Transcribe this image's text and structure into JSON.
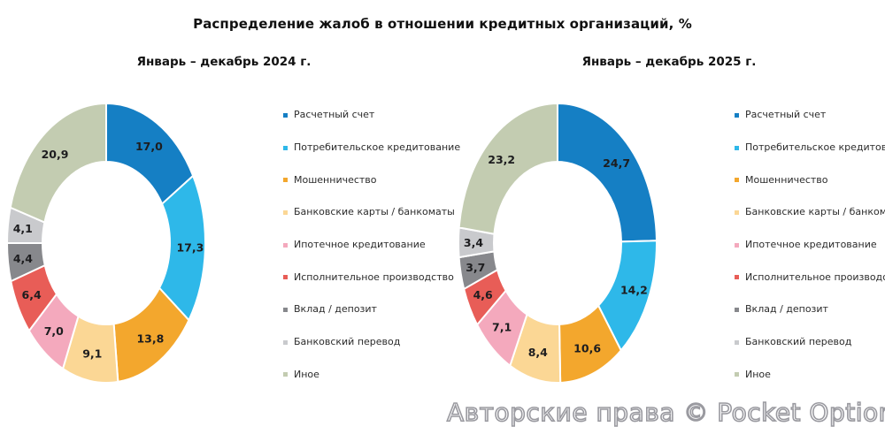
{
  "title": "Распределение жалоб в отношении кредитных организаций, %",
  "watermark": "Авторские права © Pocket Option",
  "legend": {
    "items": [
      {
        "label": "Расчетный счет",
        "color": "#157fc4"
      },
      {
        "label": "Потребительское кредитование",
        "color": "#2eb8e9"
      },
      {
        "label": "Мошенничество",
        "color": "#f3a72d"
      },
      {
        "label": "Банковские карты / банкоматы",
        "color": "#fbd795"
      },
      {
        "label": "Ипотечное кредитование",
        "color": "#f4a9bd"
      },
      {
        "label": "Исполнительное производство",
        "color": "#e85d57"
      },
      {
        "label": "Вклад / депозит",
        "color": "#87888c"
      },
      {
        "label": "Банковский перевод",
        "color": "#c9cacd"
      },
      {
        "label": "Иное",
        "color": "#c3ccb1"
      }
    ]
  },
  "chart_data": [
    {
      "type": "pie",
      "variant": "donut",
      "title": "Январь – декабрь 2024 г.",
      "categories": [
        "Расчетный счет",
        "Потребительское кредитование",
        "Мошенничество",
        "Банковские карты / банкоматы",
        "Ипотечное кредитование",
        "Исполнительное производство",
        "Вклад / депозит",
        "Банковский перевод",
        "Иное"
      ],
      "values": [
        17.0,
        17.3,
        13.8,
        9.1,
        7.0,
        6.4,
        4.4,
        4.1,
        20.9
      ],
      "value_labels": [
        "17,0",
        "17,3",
        "13,8",
        "9,1",
        "7,0",
        "6,4",
        "4,4",
        "4,1",
        "20,9"
      ],
      "colors": [
        "#157fc4",
        "#2eb8e9",
        "#f3a72d",
        "#fbd795",
        "#f4a9bd",
        "#e85d57",
        "#87888c",
        "#c9cacd",
        "#c3ccb1"
      ],
      "start_angle_deg": 0,
      "direction": "clockwise",
      "legend_position": "right"
    },
    {
      "type": "pie",
      "variant": "donut",
      "title": "Январь – декабрь 2025 г.",
      "categories": [
        "Расчетный счет",
        "Потребительское кредитование",
        "Мошенничество",
        "Банковские карты / банкоматы",
        "Ипотечное кредитование",
        "Исполнительное производство",
        "Вклад / депозит",
        "Банковский перевод",
        "Иное"
      ],
      "values": [
        24.7,
        14.2,
        10.6,
        8.4,
        7.1,
        4.6,
        3.7,
        3.4,
        23.2
      ],
      "value_labels": [
        "24,7",
        "14,2",
        "10,6",
        "8,4",
        "7,1",
        "4,6",
        "3,7",
        "3,4",
        "23,2"
      ],
      "colors": [
        "#157fc4",
        "#2eb8e9",
        "#f3a72d",
        "#fbd795",
        "#f4a9bd",
        "#e85d57",
        "#87888c",
        "#c9cacd",
        "#c3ccb1"
      ],
      "start_angle_deg": 0,
      "direction": "clockwise",
      "legend_position": "right"
    }
  ]
}
